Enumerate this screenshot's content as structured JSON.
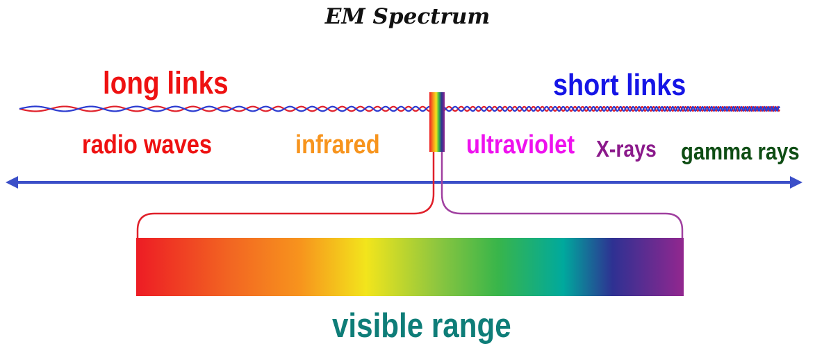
{
  "title": "EM Spectrum",
  "labels": {
    "long_links": "long links",
    "short_links": "short links",
    "radio_waves": "radio waves",
    "infrared": "infrared",
    "ultraviolet": "ultraviolet",
    "x_rays": "X-rays",
    "gamma_rays": "gamma rays",
    "visible_range": "visible range"
  },
  "colors": {
    "long_links": "#ee1111",
    "short_links": "#1515e6",
    "radio_waves": "#ee1111",
    "infrared": "#f7941d",
    "ultraviolet": "#ee11ee",
    "x_rays": "#8b1a8b",
    "gamma_rays": "#0e4d14",
    "visible_range": "#0e7d78",
    "axis": "#3b4fc8",
    "wave_red": "#e0202a",
    "wave_blue": "#2a3ad0",
    "bracket_left": "#e0202a",
    "bracket_right": "#a040a0"
  }
}
